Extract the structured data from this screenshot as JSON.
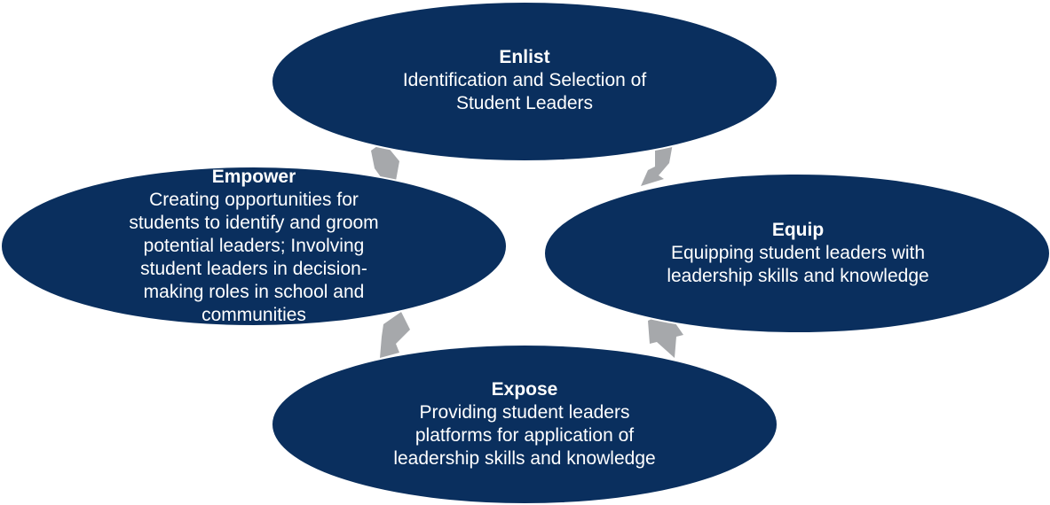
{
  "colors": {
    "ellipse_fill": "#0a2f5e",
    "ellipse_edge": "#ffffff",
    "arrow_fill": "#a6a8ab",
    "text": "#ffffff"
  },
  "diagram": {
    "type": "cycle",
    "nodes": [
      {
        "id": "enlist",
        "title": "Enlist",
        "lines": [
          "Identification and Selection of",
          "Student Leaders"
        ]
      },
      {
        "id": "equip",
        "title": "Equip",
        "lines": [
          "Equipping student leaders with",
          "leadership skills and knowledge"
        ]
      },
      {
        "id": "expose",
        "title": "Expose",
        "lines": [
          "Providing student leaders",
          "platforms for application of",
          "leadership skills and knowledge"
        ]
      },
      {
        "id": "empower",
        "title": "Empower",
        "lines": [
          "Creating opportunities for",
          "students to identify and groom",
          "potential leaders; Involving",
          "student leaders in decision-",
          "making roles in school and",
          "communities"
        ]
      }
    ],
    "arrows": [
      {
        "from": "enlist",
        "to": "equip",
        "icon": "chevron-arrow-icon"
      },
      {
        "from": "equip",
        "to": "expose",
        "icon": "chevron-arrow-icon"
      },
      {
        "from": "expose",
        "to": "empower",
        "icon": "chevron-arrow-icon"
      },
      {
        "from": "empower",
        "to": "enlist",
        "icon": "chevron-arrow-icon"
      }
    ]
  }
}
